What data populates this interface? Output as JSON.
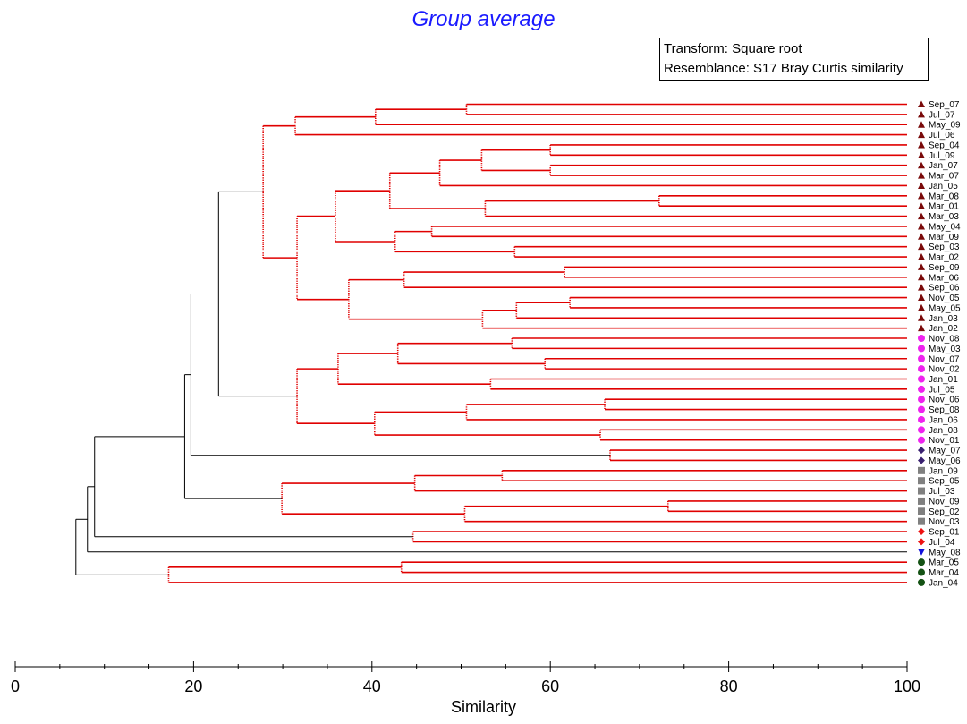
{
  "chart_data": {
    "type": "dendrogram",
    "title": "Group average",
    "annotations": [
      "Transform: Square root",
      "Resemblance: S17 Bray Curtis similarity"
    ],
    "xlabel": "Similarity",
    "xlim": [
      0,
      100
    ],
    "xticks": [
      "0",
      "20",
      "40",
      "60",
      "80",
      "100"
    ],
    "leaves": [
      {
        "label": "Sep_07",
        "group": "A"
      },
      {
        "label": "Jul_07",
        "group": "A"
      },
      {
        "label": "May_09",
        "group": "A"
      },
      {
        "label": "Jul_06",
        "group": "A"
      },
      {
        "label": "Sep_04",
        "group": "A"
      },
      {
        "label": "Jul_09",
        "group": "A"
      },
      {
        "label": "Jan_07",
        "group": "A"
      },
      {
        "label": "Mar_07",
        "group": "A"
      },
      {
        "label": "Jan_05",
        "group": "A"
      },
      {
        "label": "Mar_08",
        "group": "A"
      },
      {
        "label": "Mar_01",
        "group": "A"
      },
      {
        "label": "Mar_03",
        "group": "A"
      },
      {
        "label": "May_04",
        "group": "A"
      },
      {
        "label": "Mar_09",
        "group": "A"
      },
      {
        "label": "Sep_03",
        "group": "A"
      },
      {
        "label": "Mar_02",
        "group": "A"
      },
      {
        "label": "Sep_09",
        "group": "A"
      },
      {
        "label": "Mar_06",
        "group": "A"
      },
      {
        "label": "Sep_06",
        "group": "A"
      },
      {
        "label": "Nov_05",
        "group": "A"
      },
      {
        "label": "May_05",
        "group": "A"
      },
      {
        "label": "Jan_03",
        "group": "A"
      },
      {
        "label": "Jan_02",
        "group": "A"
      },
      {
        "label": "Nov_08",
        "group": "B"
      },
      {
        "label": "May_03",
        "group": "B"
      },
      {
        "label": "Nov_07",
        "group": "B"
      },
      {
        "label": "Nov_02",
        "group": "B"
      },
      {
        "label": "Jan_01",
        "group": "B"
      },
      {
        "label": "Jul_05",
        "group": "B"
      },
      {
        "label": "Nov_06",
        "group": "B"
      },
      {
        "label": "Sep_08",
        "group": "B"
      },
      {
        "label": "Jan_06",
        "group": "B"
      },
      {
        "label": "Jan_08",
        "group": "B"
      },
      {
        "label": "Nov_01",
        "group": "B"
      },
      {
        "label": "May_07",
        "group": "C"
      },
      {
        "label": "May_06",
        "group": "C"
      },
      {
        "label": "Jan_09",
        "group": "D"
      },
      {
        "label": "Sep_05",
        "group": "D"
      },
      {
        "label": "Jul_03",
        "group": "D"
      },
      {
        "label": "Nov_09",
        "group": "D"
      },
      {
        "label": "Sep_02",
        "group": "D"
      },
      {
        "label": "Nov_03",
        "group": "D"
      },
      {
        "label": "Sep_01",
        "group": "E"
      },
      {
        "label": "Jul_04",
        "group": "E"
      },
      {
        "label": "May_08",
        "group": "F"
      },
      {
        "label": "Mar_05",
        "group": "G"
      },
      {
        "label": "Mar_04",
        "group": "G"
      },
      {
        "label": "Jan_04",
        "group": "G"
      }
    ],
    "groups": {
      "A": {
        "symbol": "triangle-up",
        "color": "#7a0a0a"
      },
      "B": {
        "symbol": "circle",
        "color": "#ee22ee"
      },
      "C": {
        "symbol": "diamond",
        "color": "#3a2070"
      },
      "D": {
        "symbol": "square",
        "color": "#808080"
      },
      "E": {
        "symbol": "diamond",
        "color": "#ee1111"
      },
      "F": {
        "symbol": "triangle-down",
        "color": "#1111dd"
      },
      "G": {
        "symbol": "circle",
        "color": "#145214"
      }
    },
    "merges": [
      {
        "id": "n1",
        "children": [
          0,
          1
        ],
        "similarity": 50.6,
        "red": true
      },
      {
        "id": "n2",
        "children": [
          "n1",
          2
        ],
        "similarity": 40.4,
        "red": true
      },
      {
        "id": "n3",
        "children": [
          "n2",
          3
        ],
        "similarity": 31.4,
        "red": true
      },
      {
        "id": "n4",
        "children": [
          4,
          5
        ],
        "similarity": 60.0,
        "red": true
      },
      {
        "id": "n5",
        "children": [
          6,
          7
        ],
        "similarity": 60.0,
        "red": true
      },
      {
        "id": "n6",
        "children": [
          "n4",
          "n5"
        ],
        "similarity": 52.3,
        "red": true
      },
      {
        "id": "n7",
        "children": [
          "n6",
          8
        ],
        "similarity": 47.6,
        "red": true
      },
      {
        "id": "n8",
        "children": [
          9,
          10
        ],
        "similarity": 72.2,
        "red": true
      },
      {
        "id": "n9",
        "children": [
          "n8",
          11
        ],
        "similarity": 52.7,
        "red": true
      },
      {
        "id": "n10",
        "children": [
          "n7",
          "n9"
        ],
        "similarity": 42.0,
        "red": true
      },
      {
        "id": "n11",
        "children": [
          12,
          13
        ],
        "similarity": 46.7,
        "red": true
      },
      {
        "id": "n12",
        "children": [
          14,
          15
        ],
        "similarity": 56.0,
        "red": true
      },
      {
        "id": "n13",
        "children": [
          "n11",
          "n12"
        ],
        "similarity": 42.6,
        "red": true
      },
      {
        "id": "n14",
        "children": [
          "n10",
          "n13"
        ],
        "similarity": 35.9,
        "red": true
      },
      {
        "id": "n15",
        "children": [
          16,
          17
        ],
        "similarity": 61.6,
        "red": true
      },
      {
        "id": "n16",
        "children": [
          "n15",
          18
        ],
        "similarity": 43.6,
        "red": true
      },
      {
        "id": "n17",
        "children": [
          19,
          20
        ],
        "similarity": 62.2,
        "red": true
      },
      {
        "id": "n18",
        "children": [
          "n17",
          21
        ],
        "similarity": 56.2,
        "red": true
      },
      {
        "id": "n19",
        "children": [
          "n18",
          22
        ],
        "similarity": 52.4,
        "red": true
      },
      {
        "id": "n20",
        "children": [
          "n16",
          "n19"
        ],
        "similarity": 37.4,
        "red": true
      },
      {
        "id": "n21",
        "children": [
          "n14",
          "n20"
        ],
        "similarity": 31.6,
        "red": true
      },
      {
        "id": "n22",
        "children": [
          "n3",
          "n21"
        ],
        "similarity": 27.8,
        "red": true
      },
      {
        "id": "n23",
        "children": [
          23,
          24
        ],
        "similarity": 55.7,
        "red": true
      },
      {
        "id": "n24",
        "children": [
          25,
          26
        ],
        "similarity": 59.4,
        "red": true
      },
      {
        "id": "n25",
        "children": [
          "n23",
          "n24"
        ],
        "similarity": 42.9,
        "red": true
      },
      {
        "id": "n26",
        "children": [
          27,
          28
        ],
        "similarity": 53.3,
        "red": true
      },
      {
        "id": "n27",
        "children": [
          "n25",
          "n26"
        ],
        "similarity": 36.2,
        "red": true
      },
      {
        "id": "n28",
        "children": [
          29,
          30
        ],
        "similarity": 66.1,
        "red": true
      },
      {
        "id": "n29",
        "children": [
          "n28",
          31
        ],
        "similarity": 50.6,
        "red": true
      },
      {
        "id": "n30",
        "children": [
          32,
          33
        ],
        "similarity": 65.6,
        "red": true
      },
      {
        "id": "n31",
        "children": [
          "n29",
          "n30"
        ],
        "similarity": 40.3,
        "red": true
      },
      {
        "id": "n32",
        "children": [
          "n27",
          "n31"
        ],
        "similarity": 31.6,
        "red": true
      },
      {
        "id": "n33",
        "children": [
          "n22",
          "n32"
        ],
        "similarity": 22.8,
        "red": false
      },
      {
        "id": "n34",
        "children": [
          34,
          35
        ],
        "similarity": 66.7,
        "red": true
      },
      {
        "id": "n35",
        "children": [
          "n33",
          "n34"
        ],
        "similarity": 19.7,
        "red": false
      },
      {
        "id": "n36",
        "children": [
          36,
          37
        ],
        "similarity": 54.6,
        "red": true
      },
      {
        "id": "n37",
        "children": [
          "n36",
          38
        ],
        "similarity": 44.8,
        "red": true
      },
      {
        "id": "n38",
        "children": [
          39,
          40
        ],
        "similarity": 73.2,
        "red": true
      },
      {
        "id": "n39",
        "children": [
          "n38",
          41
        ],
        "similarity": 50.4,
        "red": true
      },
      {
        "id": "n40",
        "children": [
          "n37",
          "n39"
        ],
        "similarity": 29.9,
        "red": true
      },
      {
        "id": "n41",
        "children": [
          "n35",
          "n40"
        ],
        "similarity": 19.0,
        "red": false
      },
      {
        "id": "n42",
        "children": [
          42,
          43
        ],
        "similarity": 44.6,
        "red": true
      },
      {
        "id": "n43",
        "children": [
          "n41",
          "n42"
        ],
        "similarity": 8.9,
        "red": false
      },
      {
        "id": "n44",
        "children": [
          "n43",
          44
        ],
        "similarity": 8.1,
        "red": false
      },
      {
        "id": "n45",
        "children": [
          45,
          46
        ],
        "similarity": 43.3,
        "red": true
      },
      {
        "id": "n46",
        "children": [
          "n45",
          47
        ],
        "similarity": 17.2,
        "red": true
      },
      {
        "id": "n47",
        "children": [
          "n44",
          "n46"
        ],
        "similarity": 6.8,
        "red": false
      }
    ]
  }
}
